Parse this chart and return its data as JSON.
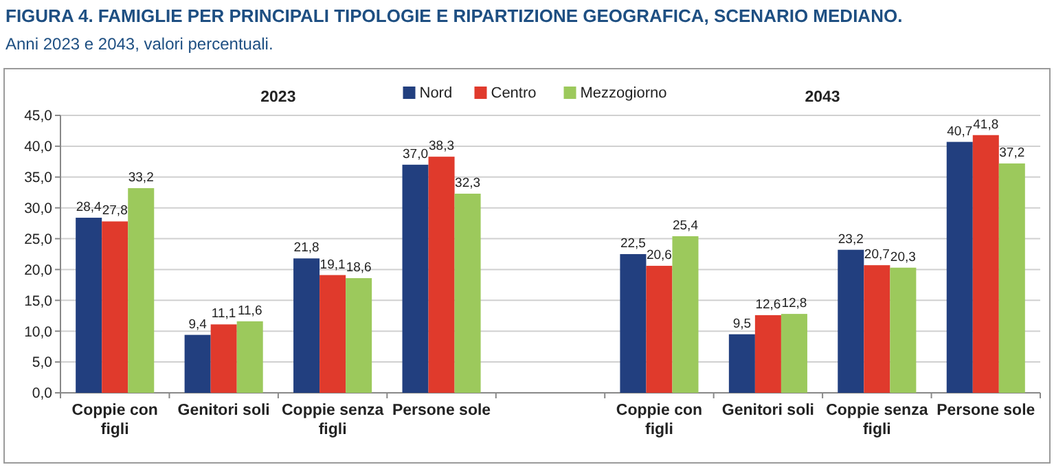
{
  "chart_data": {
    "type": "bar",
    "title": "FIGURA 4. FAMIGLIE PER PRINCIPALI TIPOLOGIE E RIPARTIZIONE GEOGRAFICA, SCENARIO MEDIANO.",
    "subtitle": "Anni 2023 e 2043, valori percentuali.",
    "categories": [
      "Coppie con figli",
      "Genitori soli",
      "Coppie senza figli",
      "Persone sole",
      null,
      "Coppie con figli",
      "Genitori soli",
      "Coppie senza figli",
      "Persone sole"
    ],
    "series": [
      {
        "name": "Nord",
        "color": "#223f7f",
        "values": [
          28.4,
          9.4,
          21.8,
          37.0,
          null,
          22.5,
          9.5,
          23.2,
          40.7
        ],
        "value_labels": [
          "28,4",
          "9,4",
          "21,8",
          "37,0",
          null,
          "22,5",
          "9,5",
          "23,2",
          "40,7"
        ]
      },
      {
        "name": "Centro",
        "color": "#e03a2c",
        "values": [
          27.8,
          11.1,
          19.1,
          38.3,
          null,
          20.6,
          12.6,
          20.7,
          41.8
        ],
        "value_labels": [
          "27,8",
          "11,1",
          "19,1",
          "38,3",
          null,
          "20,6",
          "12,6",
          "20,7",
          "41,8"
        ]
      },
      {
        "name": "Mezzogiorno",
        "color": "#9cc95c",
        "values": [
          33.2,
          11.6,
          18.6,
          32.3,
          null,
          25.4,
          12.8,
          20.3,
          37.2
        ],
        "value_labels": [
          "33,2",
          "11,6",
          "18,6",
          "32,3",
          null,
          "25,4",
          "12,8",
          "20,3",
          "37,2"
        ]
      }
    ],
    "annotations": [
      "2023",
      "2043"
    ],
    "ylim": [
      0,
      45
    ],
    "yticks": [
      {
        "value": 0,
        "label": "0,0"
      },
      {
        "value": 5,
        "label": "5,0"
      },
      {
        "value": 10,
        "label": "10,0"
      },
      {
        "value": 15,
        "label": "15,0"
      },
      {
        "value": 20,
        "label": "20,0"
      },
      {
        "value": 25,
        "label": "25,0"
      },
      {
        "value": 30,
        "label": "30,0"
      },
      {
        "value": 35,
        "label": "35,0"
      },
      {
        "value": 40,
        "label": "40,0"
      },
      {
        "value": 45,
        "label": "45,0"
      }
    ],
    "grid": "y",
    "legend": "top"
  }
}
